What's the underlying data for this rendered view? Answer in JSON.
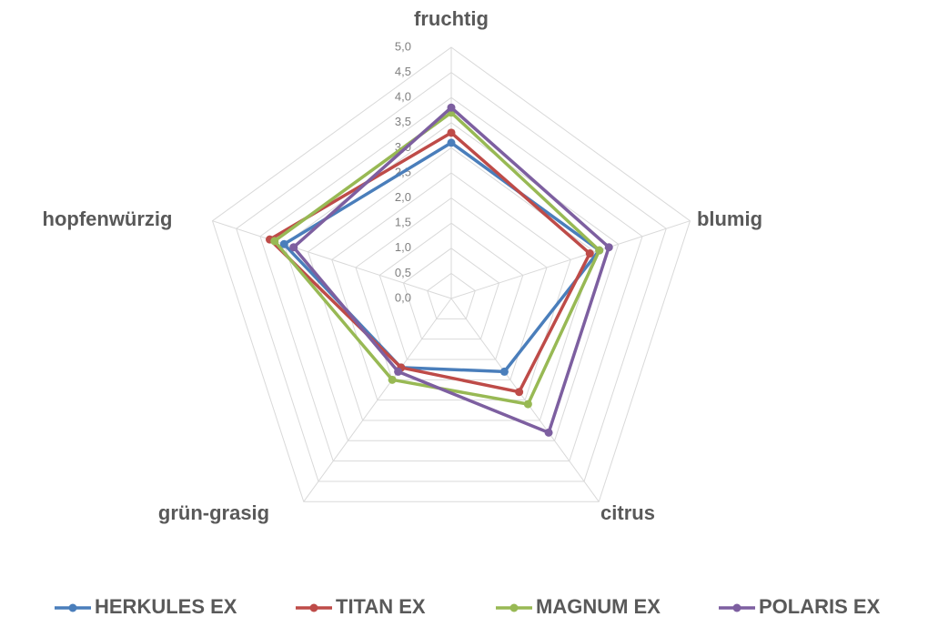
{
  "chart_data": {
    "type": "radar",
    "categories": [
      "fruchtig",
      "blumig",
      "citrus",
      "grün-grasig",
      "hopfenwürzig"
    ],
    "rlim": [
      0,
      5
    ],
    "rticks": [
      {
        "value": 0,
        "label": "0,0"
      },
      {
        "value": 0.5,
        "label": "0,5"
      },
      {
        "value": 1,
        "label": "1,0"
      },
      {
        "value": 1.5,
        "label": "1,5"
      },
      {
        "value": 2,
        "label": "2,0"
      },
      {
        "value": 2.5,
        "label": "2,5"
      },
      {
        "value": 3,
        "label": "3,0"
      },
      {
        "value": 3.5,
        "label": "3,5"
      },
      {
        "value": 4,
        "label": "4,0"
      },
      {
        "value": 4.5,
        "label": "4,5"
      },
      {
        "value": 5,
        "label": "5,0"
      }
    ],
    "grid": true,
    "legend": "bottom",
    "series": [
      {
        "name": "HERKULES EX",
        "color": "#4a7ebb",
        "values": [
          3.1,
          3.1,
          1.8,
          1.7,
          3.5
        ]
      },
      {
        "name": "TITAN EX",
        "color": "#be4b48",
        "values": [
          3.3,
          2.9,
          2.3,
          1.7,
          3.8
        ]
      },
      {
        "name": "MAGNUM EX",
        "color": "#98b954",
        "values": [
          3.7,
          3.1,
          2.6,
          2.0,
          3.7
        ]
      },
      {
        "name": "POLARIS EX",
        "color": "#7d5fa0",
        "values": [
          3.8,
          3.3,
          3.3,
          1.8,
          3.3
        ]
      }
    ]
  }
}
